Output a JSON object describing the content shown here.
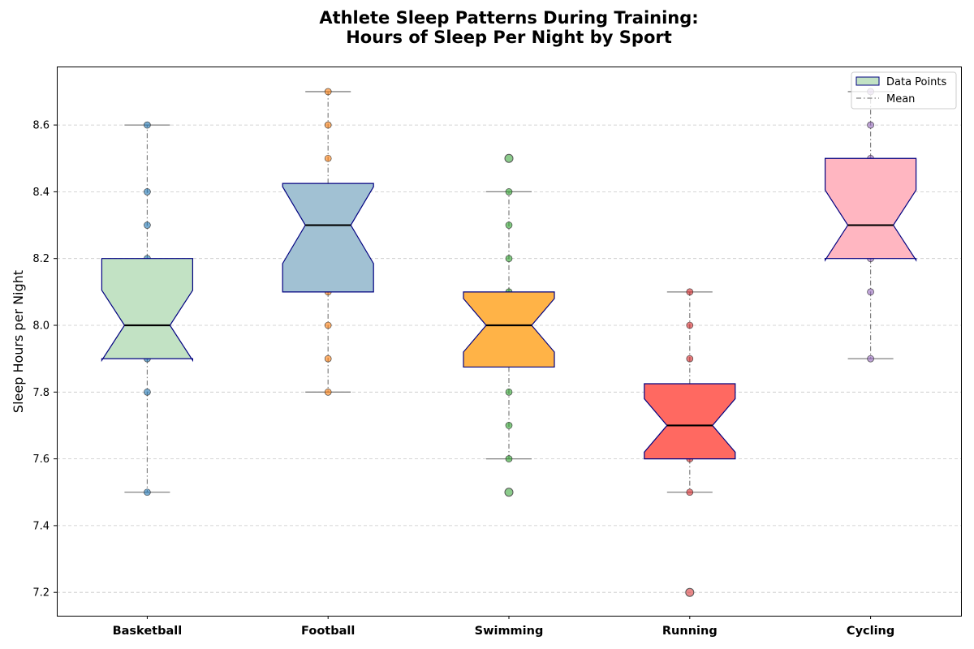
{
  "chart_data": {
    "type": "box",
    "title_lines": [
      "Athlete Sleep Patterns During Training:",
      "Hours of Sleep Per Night by Sport"
    ],
    "xlabel": "",
    "ylabel": "Sleep Hours per Night",
    "ylim": [
      7.13,
      8.78
    ],
    "yticks": [
      "7.2",
      "7.4",
      "7.6",
      "7.8",
      "8.0",
      "8.2",
      "8.4",
      "8.6"
    ],
    "grid": "horizontal dashed",
    "legend": {
      "placement": "top-right",
      "entries": [
        "Data Points",
        "Mean"
      ]
    },
    "categories": [
      "Basketball",
      "Football",
      "Swimming",
      "Running",
      "Cycling"
    ],
    "series": [
      {
        "category": "Basketball",
        "color": "#c2e2c4",
        "point_color": "#1f77b4",
        "box": {
          "whisker_low": 7.5,
          "q1": 7.9,
          "median": 8.0,
          "q3": 8.2,
          "whisker_high": 8.6,
          "notch_low": 7.895,
          "notch_high": 8.105
        },
        "points": [
          7.5,
          7.8,
          7.9,
          8.0,
          8.2,
          8.3,
          8.4,
          8.6
        ],
        "outliers": []
      },
      {
        "category": "Football",
        "color": "#a1c1d3",
        "point_color": "#ff7f0e",
        "box": {
          "whisker_low": 7.8,
          "q1": 8.1,
          "median": 8.3,
          "q3": 8.425,
          "whisker_high": 8.7,
          "notch_low": 8.185,
          "notch_high": 8.415
        },
        "points": [
          7.8,
          7.9,
          8.0,
          8.1,
          8.3,
          8.5,
          8.6,
          8.7
        ],
        "outliers": []
      },
      {
        "category": "Swimming",
        "color": "#ffb347",
        "point_color": "#2ca02c",
        "box": {
          "whisker_low": 7.6,
          "q1": 7.875,
          "median": 8.0,
          "q3": 8.1,
          "whisker_high": 8.4,
          "notch_low": 7.92,
          "notch_high": 8.08
        },
        "points": [
          7.6,
          7.7,
          7.8,
          8.0,
          8.1,
          8.2,
          8.3,
          8.4
        ],
        "outliers": [
          7.5,
          8.5
        ]
      },
      {
        "category": "Running",
        "color": "#ff6961",
        "point_color": "#d62728",
        "box": {
          "whisker_low": 7.5,
          "q1": 7.6,
          "median": 7.7,
          "q3": 7.825,
          "whisker_high": 8.1,
          "notch_low": 7.62,
          "notch_high": 7.78
        },
        "points": [
          7.5,
          7.6,
          7.7,
          7.9,
          8.0,
          8.1
        ],
        "outliers": [
          7.2
        ]
      },
      {
        "category": "Cycling",
        "color": "#ffb6c1",
        "point_color": "#9467bd",
        "box": {
          "whisker_low": 7.9,
          "q1": 8.2,
          "median": 8.3,
          "q3": 8.5,
          "whisker_high": 8.7,
          "notch_low": 8.195,
          "notch_high": 8.405
        },
        "points": [
          7.9,
          8.1,
          8.2,
          8.3,
          8.5,
          8.6,
          8.7
        ],
        "outliers": []
      }
    ]
  }
}
